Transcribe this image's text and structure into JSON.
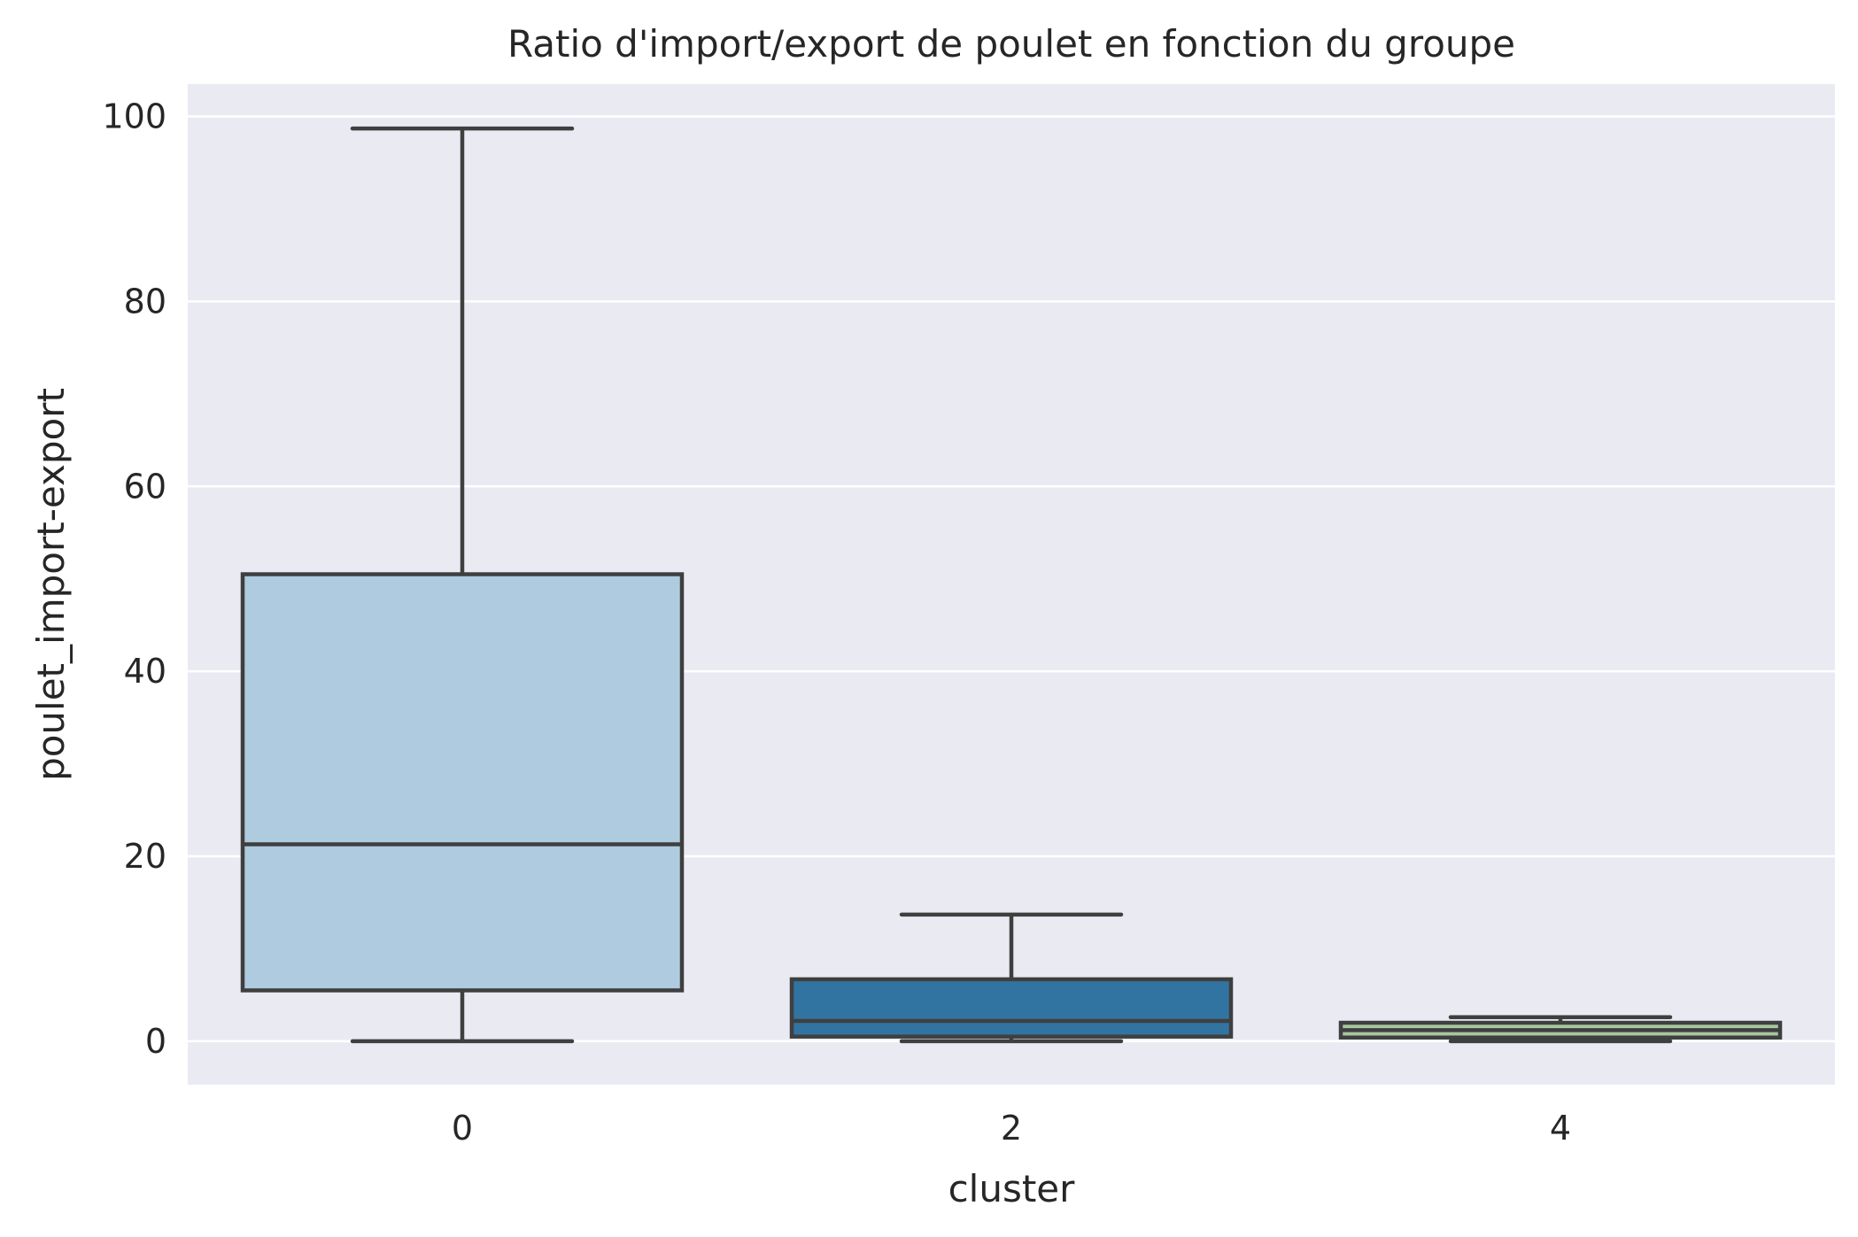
{
  "chart_data": {
    "type": "box",
    "title": "Ratio d'import/export de poulet en fonction du groupe",
    "xlabel": "cluster",
    "ylabel": "poulet_import-export",
    "ylim": [
      -4.7,
      103.5
    ],
    "yticks": [
      0,
      20,
      40,
      60,
      80,
      100
    ],
    "grid": true,
    "categories": [
      "0",
      "2",
      "4"
    ],
    "boxes": [
      {
        "category": "0",
        "whisker_low": 0.0,
        "q1": 5.5,
        "median": 21.3,
        "q3": 50.5,
        "whisker_high": 98.7,
        "color": "#aecbdf"
      },
      {
        "category": "2",
        "whisker_low": 0.0,
        "q1": 0.5,
        "median": 2.2,
        "q3": 6.7,
        "whisker_high": 13.7,
        "color": "#3274a1"
      },
      {
        "category": "4",
        "whisker_low": 0.0,
        "q1": 0.4,
        "median": 1.2,
        "q3": 2.0,
        "whisker_high": 2.6,
        "color": "#a7c6a0"
      }
    ],
    "colors": {
      "plot_background": "#eaeaf2",
      "grid": "#ffffff",
      "box_edge": "#3f3f3f",
      "text": "#262626"
    }
  }
}
